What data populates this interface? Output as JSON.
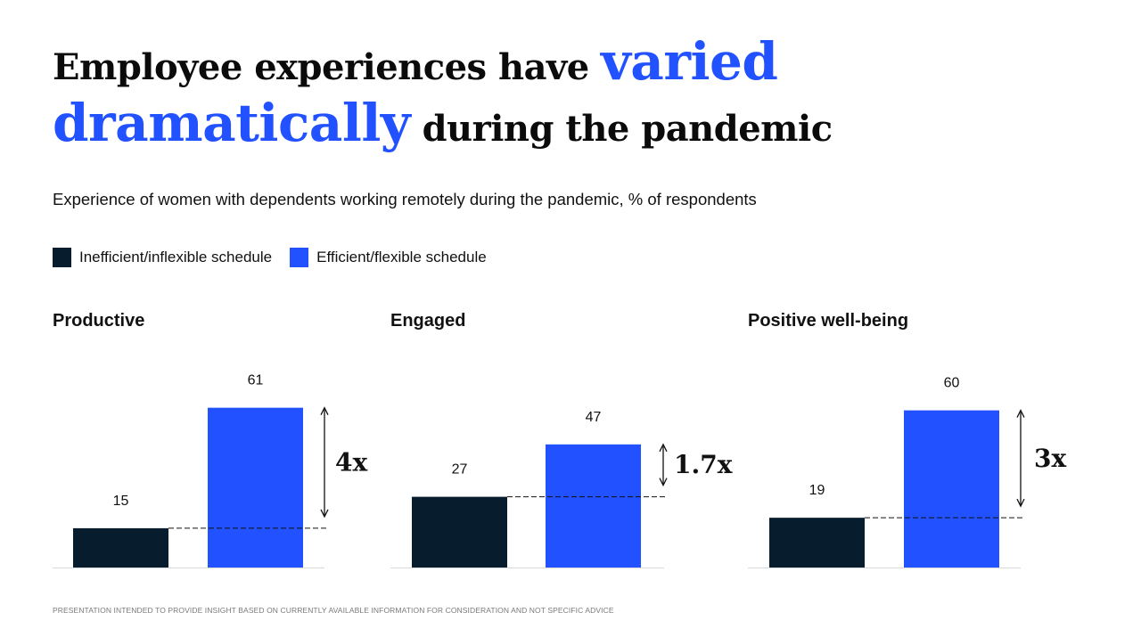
{
  "title": {
    "part1": "Employee experiences have ",
    "highlight1": "varied",
    "highlight2": "dramatically",
    "part2": " during the pandemic"
  },
  "subtitle": "Experience of women with dependents working remotely during the pandemic, % of respondents",
  "legend": [
    {
      "label": "Inefficient/inflexible schedule",
      "color": "#071c2c"
    },
    {
      "label": "Efficient/flexible schedule",
      "color": "#2251ff"
    }
  ],
  "colors": {
    "dark": "#071c2c",
    "blue": "#2251ff",
    "accent": "#2251ff"
  },
  "chart_data": [
    {
      "type": "bar",
      "title": "Productive",
      "categories": [
        "Inefficient/inflexible schedule",
        "Efficient/flexible schedule"
      ],
      "values": [
        15,
        61
      ],
      "multiplier": "4x",
      "ylabel": "% of respondents"
    },
    {
      "type": "bar",
      "title": "Engaged",
      "categories": [
        "Inefficient/inflexible schedule",
        "Efficient/flexible schedule"
      ],
      "values": [
        27,
        47
      ],
      "multiplier": "1.7x",
      "ylabel": "% of respondents"
    },
    {
      "type": "bar",
      "title": "Positive well-being",
      "categories": [
        "Inefficient/inflexible schedule",
        "Efficient/flexible schedule"
      ],
      "values": [
        19,
        60
      ],
      "multiplier": "3x",
      "ylabel": "% of respondents"
    }
  ],
  "footer": "PRESENTATION INTENDED TO PROVIDE INSIGHT BASED ON CURRENTLY AVAILABLE INFORMATION FOR CONSIDERATION AND NOT SPECIFIC ADVICE"
}
